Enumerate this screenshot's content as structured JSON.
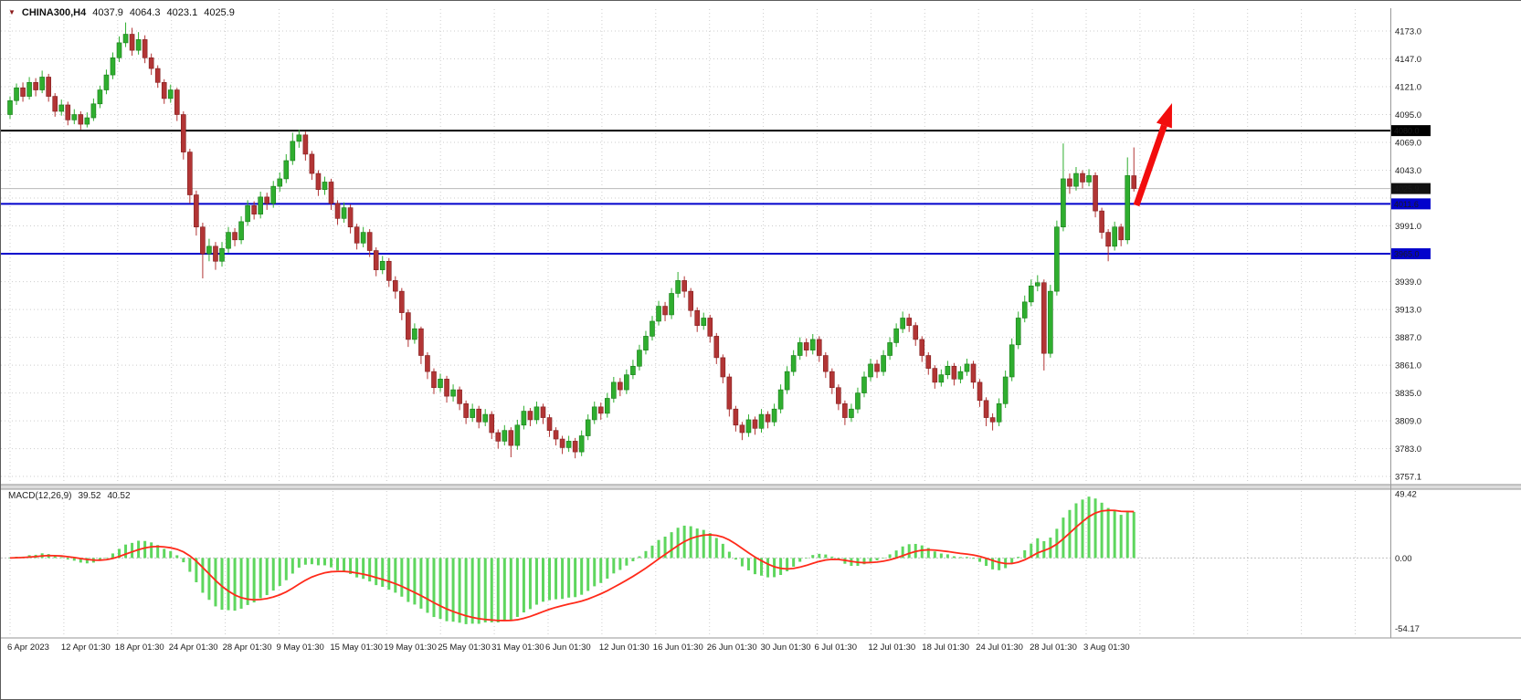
{
  "header": {
    "symbol_period": "CHINA300,H4",
    "open": "4037.9",
    "high": "4064.3",
    "low": "4023.1",
    "close": "4025.9"
  },
  "macd_panel": {
    "label": "MACD(12,26,9)",
    "main_value": "39.52",
    "signal_value": "40.52",
    "axis_labels": [
      "49.42",
      "0.00",
      "-54.17"
    ],
    "max": 49.42,
    "min": -54.17
  },
  "price_axis": {
    "ticks": [
      [
        4173.0,
        "4173.0"
      ],
      [
        4147.0,
        "4147.0"
      ],
      [
        4121.0,
        "4121.0"
      ],
      [
        4095.0,
        "4095.0"
      ],
      [
        4069.0,
        "4069.0"
      ],
      [
        4043.0,
        "4043.0"
      ],
      [
        4017.0,
        ""
      ],
      [
        3991.0,
        "3991.0"
      ],
      [
        3965.0,
        ""
      ],
      [
        3939.0,
        "3939.0"
      ],
      [
        3913.0,
        "3913.0"
      ],
      [
        3887.0,
        "3887.0"
      ],
      [
        3861.0,
        "3861.0"
      ],
      [
        3835.0,
        "3835.0"
      ],
      [
        3809.0,
        "3809.0"
      ],
      [
        3783.0,
        "3783.0"
      ],
      [
        3757.1,
        "3757.1"
      ]
    ]
  },
  "levels": [
    {
      "value": 4080.0,
      "label": "4080.0",
      "color": "#000000"
    },
    {
      "value": 4011.6,
      "label": "4011.6",
      "color": "#0202cc"
    },
    {
      "value": 3965.0,
      "label": "3965.0",
      "color": "#0202cc"
    }
  ],
  "current_price": {
    "value": 4025.9,
    "label": "4025.9"
  },
  "x_axis": {
    "labels": [
      "6 Apr 2023",
      "12 Apr 01:30",
      "18 Apr 01:30",
      "24 Apr 01:30",
      "28 Apr 01:30",
      "9 May 01:30",
      "15 May 01:30",
      "19 May 01:30",
      "25 May 01:30",
      "31 May 01:30",
      "6 Jun 01:30",
      "12 Jun 01:30",
      "16 Jun 01:30",
      "26 Jun 01:30",
      "30 Jun 01:30",
      "6 Jul 01:30",
      "12 Jul 01:30",
      "18 Jul 01:30",
      "24 Jul 01:30",
      "28 Jul 01:30",
      "3 Aug 01:30"
    ]
  },
  "annotations": {
    "trend_arrow": {
      "shape": "up-arrow",
      "color": "#f20d0d"
    }
  },
  "colors": {
    "bull": "#2fae2f",
    "bull_stroke": "#167a16",
    "bear": "#b23535",
    "bear_stroke": "#801c1c",
    "grid": "#cdcdcd",
    "macd_hist": "#5ed65e",
    "macd_signal": "#ff2a1a",
    "level_blue": "#0202cc",
    "level_black": "#000000",
    "current_line": "#b8b8b8",
    "bg": "#ffffff"
  },
  "chart_data": {
    "type": "candlestick",
    "symbol": "CHINA300",
    "timeframe": "H4",
    "title": "CHINA300,H4 4037.9 4064.3 4023.1 4025.9",
    "price_range": [
      3757.1,
      4173.0
    ],
    "macd_params": {
      "fast": 12,
      "slow": 26,
      "signal": 9
    },
    "macd_range": [
      -54.17,
      49.42
    ],
    "ohlc_order": "open,high,low,close",
    "candles": [
      [
        4095,
        4112,
        4091,
        4108
      ],
      [
        4108,
        4124,
        4104,
        4120
      ],
      [
        4120,
        4125,
        4107,
        4112
      ],
      [
        4112,
        4130,
        4109,
        4125
      ],
      [
        4125,
        4129,
        4112,
        4118
      ],
      [
        4118,
        4136,
        4115,
        4130
      ],
      [
        4130,
        4133,
        4107,
        4112
      ],
      [
        4112,
        4115,
        4093,
        4098
      ],
      [
        4098,
        4109,
        4094,
        4104
      ],
      [
        4104,
        4107,
        4085,
        4090
      ],
      [
        4090,
        4100,
        4086,
        4095
      ],
      [
        4095,
        4098,
        4081,
        4086
      ],
      [
        4086,
        4097,
        4083,
        4092
      ],
      [
        4092,
        4110,
        4089,
        4105
      ],
      [
        4105,
        4122,
        4101,
        4118
      ],
      [
        4118,
        4137,
        4114,
        4132
      ],
      [
        4132,
        4153,
        4128,
        4148
      ],
      [
        4148,
        4168,
        4144,
        4162
      ],
      [
        4162,
        4181,
        4158,
        4170
      ],
      [
        4170,
        4176,
        4150,
        4155
      ],
      [
        4155,
        4172,
        4151,
        4165
      ],
      [
        4165,
        4169,
        4143,
        4148
      ],
      [
        4148,
        4152,
        4132,
        4138
      ],
      [
        4138,
        4141,
        4120,
        4125
      ],
      [
        4125,
        4128,
        4105,
        4110
      ],
      [
        4110,
        4123,
        4106,
        4118
      ],
      [
        4118,
        4120,
        4089,
        4095
      ],
      [
        4095,
        4098,
        4053,
        4060
      ],
      [
        4060,
        4063,
        4012,
        4020
      ],
      [
        4020,
        4024,
        3982,
        3990
      ],
      [
        3990,
        3994,
        3942,
        3965
      ],
      [
        3965,
        3979,
        3958,
        3972
      ],
      [
        3972,
        3976,
        3950,
        3958
      ],
      [
        3958,
        3976,
        3953,
        3970
      ],
      [
        3970,
        3990,
        3966,
        3985
      ],
      [
        3985,
        3989,
        3972,
        3978
      ],
      [
        3978,
        4000,
        3974,
        3995
      ],
      [
        3995,
        4015,
        3991,
        4010
      ],
      [
        4010,
        4014,
        3997,
        4002
      ],
      [
        4002,
        4023,
        3998,
        4018
      ],
      [
        4018,
        4022,
        4006,
        4012
      ],
      [
        4012,
        4033,
        4008,
        4028
      ],
      [
        4028,
        4041,
        4023,
        4035
      ],
      [
        4035,
        4058,
        4031,
        4052
      ],
      [
        4052,
        4078,
        4048,
        4070
      ],
      [
        4070,
        4081,
        4064,
        4076
      ],
      [
        4076,
        4079,
        4052,
        4058
      ],
      [
        4058,
        4061,
        4034,
        4040
      ],
      [
        4040,
        4043,
        4019,
        4025
      ],
      [
        4025,
        4037,
        4020,
        4032
      ],
      [
        4032,
        4035,
        4006,
        4012
      ],
      [
        4012,
        4015,
        3992,
        3998
      ],
      [
        3998,
        4013,
        3994,
        4008
      ],
      [
        4008,
        4011,
        3984,
        3990
      ],
      [
        3990,
        3993,
        3969,
        3975
      ],
      [
        3975,
        3990,
        3971,
        3985
      ],
      [
        3985,
        3988,
        3962,
        3968
      ],
      [
        3968,
        3971,
        3944,
        3950
      ],
      [
        3950,
        3963,
        3946,
        3958
      ],
      [
        3958,
        3961,
        3934,
        3940
      ],
      [
        3940,
        3944,
        3923,
        3930
      ],
      [
        3930,
        3933,
        3903,
        3910
      ],
      [
        3910,
        3913,
        3878,
        3885
      ],
      [
        3885,
        3900,
        3881,
        3895
      ],
      [
        3895,
        3897,
        3862,
        3870
      ],
      [
        3870,
        3873,
        3848,
        3855
      ],
      [
        3855,
        3858,
        3834,
        3840
      ],
      [
        3840,
        3853,
        3836,
        3848
      ],
      [
        3848,
        3851,
        3826,
        3832
      ],
      [
        3832,
        3843,
        3827,
        3838
      ],
      [
        3838,
        3841,
        3819,
        3825
      ],
      [
        3825,
        3828,
        3806,
        3812
      ],
      [
        3812,
        3825,
        3808,
        3820
      ],
      [
        3820,
        3823,
        3802,
        3808
      ],
      [
        3808,
        3820,
        3804,
        3815
      ],
      [
        3815,
        3818,
        3792,
        3798
      ],
      [
        3798,
        3801,
        3783,
        3790
      ],
      [
        3790,
        3805,
        3786,
        3800
      ],
      [
        3800,
        3803,
        3775,
        3786
      ],
      [
        3786,
        3810,
        3782,
        3805
      ],
      [
        3805,
        3823,
        3801,
        3818
      ],
      [
        3818,
        3821,
        3804,
        3810
      ],
      [
        3810,
        3827,
        3806,
        3822
      ],
      [
        3822,
        3825,
        3806,
        3812
      ],
      [
        3812,
        3815,
        3794,
        3800
      ],
      [
        3800,
        3803,
        3786,
        3792
      ],
      [
        3792,
        3795,
        3778,
        3784
      ],
      [
        3784,
        3795,
        3780,
        3790
      ],
      [
        3790,
        3793,
        3774,
        3780
      ],
      [
        3780,
        3800,
        3776,
        3795
      ],
      [
        3795,
        3815,
        3791,
        3810
      ],
      [
        3810,
        3827,
        3806,
        3822
      ],
      [
        3822,
        3826,
        3810,
        3816
      ],
      [
        3816,
        3835,
        3812,
        3830
      ],
      [
        3830,
        3850,
        3826,
        3845
      ],
      [
        3845,
        3849,
        3832,
        3838
      ],
      [
        3838,
        3857,
        3834,
        3852
      ],
      [
        3852,
        3866,
        3848,
        3860
      ],
      [
        3860,
        3880,
        3856,
        3875
      ],
      [
        3875,
        3893,
        3871,
        3888
      ],
      [
        3888,
        3907,
        3884,
        3902
      ],
      [
        3902,
        3921,
        3898,
        3916
      ],
      [
        3916,
        3920,
        3902,
        3908
      ],
      [
        3908,
        3933,
        3904,
        3928
      ],
      [
        3928,
        3948,
        3924,
        3940
      ],
      [
        3940,
        3944,
        3924,
        3930
      ],
      [
        3930,
        3933,
        3906,
        3912
      ],
      [
        3912,
        3915,
        3892,
        3898
      ],
      [
        3898,
        3910,
        3894,
        3905
      ],
      [
        3905,
        3908,
        3882,
        3888
      ],
      [
        3888,
        3891,
        3862,
        3868
      ],
      [
        3868,
        3871,
        3844,
        3850
      ],
      [
        3850,
        3853,
        3813,
        3820
      ],
      [
        3820,
        3823,
        3799,
        3805
      ],
      [
        3805,
        3808,
        3791,
        3798
      ],
      [
        3798,
        3815,
        3794,
        3810
      ],
      [
        3810,
        3813,
        3796,
        3802
      ],
      [
        3802,
        3820,
        3798,
        3815
      ],
      [
        3815,
        3818,
        3802,
        3808
      ],
      [
        3808,
        3825,
        3804,
        3820
      ],
      [
        3820,
        3843,
        3816,
        3838
      ],
      [
        3838,
        3860,
        3834,
        3855
      ],
      [
        3855,
        3875,
        3851,
        3870
      ],
      [
        3870,
        3887,
        3866,
        3882
      ],
      [
        3882,
        3886,
        3869,
        3875
      ],
      [
        3875,
        3890,
        3871,
        3885
      ],
      [
        3885,
        3888,
        3864,
        3870
      ],
      [
        3870,
        3873,
        3849,
        3855
      ],
      [
        3855,
        3858,
        3834,
        3840
      ],
      [
        3840,
        3843,
        3819,
        3825
      ],
      [
        3825,
        3828,
        3805,
        3812
      ],
      [
        3812,
        3825,
        3808,
        3820
      ],
      [
        3820,
        3840,
        3816,
        3835
      ],
      [
        3835,
        3855,
        3831,
        3850
      ],
      [
        3850,
        3867,
        3846,
        3862
      ],
      [
        3862,
        3866,
        3849,
        3855
      ],
      [
        3855,
        3875,
        3851,
        3870
      ],
      [
        3870,
        3887,
        3866,
        3882
      ],
      [
        3882,
        3900,
        3878,
        3895
      ],
      [
        3895,
        3911,
        3891,
        3905
      ],
      [
        3905,
        3909,
        3892,
        3898
      ],
      [
        3898,
        3901,
        3879,
        3885
      ],
      [
        3885,
        3888,
        3864,
        3870
      ],
      [
        3870,
        3873,
        3852,
        3858
      ],
      [
        3858,
        3861,
        3839,
        3845
      ],
      [
        3845,
        3857,
        3841,
        3852
      ],
      [
        3852,
        3865,
        3848,
        3860
      ],
      [
        3860,
        3863,
        3842,
        3848
      ],
      [
        3848,
        3860,
        3844,
        3855
      ],
      [
        3855,
        3867,
        3851,
        3862
      ],
      [
        3862,
        3865,
        3839,
        3845
      ],
      [
        3845,
        3848,
        3822,
        3828
      ],
      [
        3828,
        3831,
        3804,
        3812
      ],
      [
        3812,
        3816,
        3800,
        3808
      ],
      [
        3808,
        3830,
        3804,
        3825
      ],
      [
        3825,
        3856,
        3821,
        3850
      ],
      [
        3850,
        3886,
        3846,
        3880
      ],
      [
        3880,
        3911,
        3876,
        3905
      ],
      [
        3905,
        3926,
        3901,
        3920
      ],
      [
        3920,
        3941,
        3916,
        3935
      ],
      [
        3935,
        3945,
        3930,
        3938
      ],
      [
        3938,
        3941,
        3856,
        3872
      ],
      [
        3872,
        3936,
        3868,
        3930
      ],
      [
        3930,
        3996,
        3926,
        3990
      ],
      [
        3990,
        4068,
        3986,
        4035
      ],
      [
        4035,
        4040,
        4021,
        4028
      ],
      [
        4028,
        4046,
        4024,
        4040
      ],
      [
        4040,
        4043,
        4026,
        4032
      ],
      [
        4032,
        4044,
        4028,
        4038
      ],
      [
        4038,
        4041,
        3999,
        4005
      ],
      [
        4005,
        4008,
        3979,
        3985
      ],
      [
        3985,
        3988,
        3958,
        3972
      ],
      [
        3972,
        3995,
        3968,
        3990
      ],
      [
        3990,
        3993,
        3972,
        3978
      ],
      [
        3978,
        4055,
        3974,
        4038
      ],
      [
        4037.9,
        4064.3,
        4023.1,
        4025.9
      ]
    ]
  }
}
